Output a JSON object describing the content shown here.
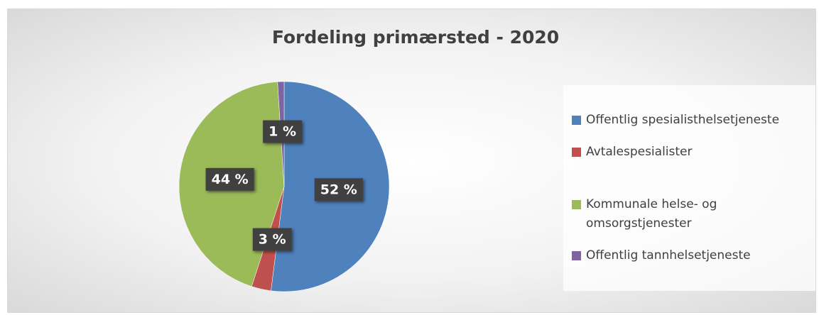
{
  "chart_data": {
    "type": "pie",
    "title": "Fordeling primærsted - 2020",
    "categories": [
      "Offentlig spesialisthelsetjeneste",
      "Avtalespesialister",
      "Kommunale helse- og omsorgstjenester",
      "Offentlig tannhelsetjeneste"
    ],
    "values": [
      52,
      3,
      44,
      1
    ],
    "value_labels": [
      "52 %",
      "3 %",
      "44 %",
      "1 %"
    ],
    "colors": [
      "#4f81bd",
      "#c0504d",
      "#9bbb59",
      "#8064a2"
    ],
    "legend": "right"
  }
}
